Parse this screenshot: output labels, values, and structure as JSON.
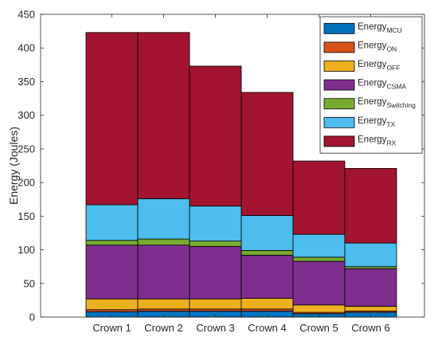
{
  "chart_data": {
    "type": "bar",
    "stacked": true,
    "categories": [
      "Crown 1",
      "Crown 2",
      "Crown 3",
      "Crown 4",
      "Crown 5",
      "Crown 6"
    ],
    "ylabel": "Energy (Joules)",
    "xlabel": "",
    "ylim": [
      0,
      450
    ],
    "yticks": [
      0,
      50,
      100,
      150,
      200,
      250,
      300,
      350,
      400,
      450
    ],
    "legend_placement": "top-right",
    "grid": false,
    "series": [
      {
        "name": "Energy",
        "sub": "MCU",
        "color": "#0072BD",
        "values": [
          8,
          9,
          9,
          9,
          5,
          7
        ]
      },
      {
        "name": "Energy",
        "sub": "ON",
        "color": "#D95319",
        "values": [
          3,
          3,
          3,
          3,
          2,
          2
        ]
      },
      {
        "name": "Energy",
        "sub": "OFF",
        "color": "#EDB120",
        "values": [
          16,
          15,
          15,
          16,
          11,
          7
        ]
      },
      {
        "name": "Energy",
        "sub": "CSMA",
        "color": "#7E2F8E",
        "values": [
          80,
          80,
          78,
          64,
          65,
          56
        ]
      },
      {
        "name": "Energy",
        "sub": "Switching",
        "color": "#77AC30",
        "values": [
          7,
          9,
          8,
          7,
          6,
          3
        ]
      },
      {
        "name": "Energy",
        "sub": "TX",
        "color": "#4DBEEE",
        "values": [
          53,
          60,
          52,
          52,
          34,
          35
        ]
      },
      {
        "name": "Energy",
        "sub": "RX",
        "color": "#A2142F",
        "values": [
          256,
          247,
          208,
          183,
          109,
          111
        ]
      }
    ]
  }
}
